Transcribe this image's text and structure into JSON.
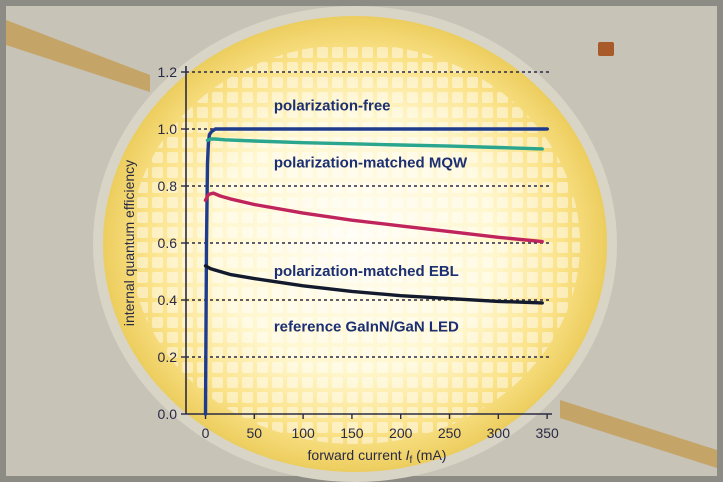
{
  "chart_data": {
    "type": "line",
    "xlabel": "forward current",
    "xlabel_symbol": "I",
    "xlabel_subscript": "f",
    "xlabel_unit": "(mA)",
    "ylabel": "internal quantum efficiency",
    "xlim": [
      -20,
      355
    ],
    "ylim": [
      0.0,
      1.2
    ],
    "x_ticks": [
      0,
      50,
      100,
      150,
      200,
      250,
      300,
      350
    ],
    "x_tick_labels": [
      "0",
      "50",
      "100",
      "150",
      "200",
      "250",
      "300",
      "350"
    ],
    "y_ticks": [
      0.0,
      0.2,
      0.4,
      0.6,
      0.8,
      1.0,
      1.2
    ],
    "y_tick_labels": [
      "0.0",
      "0.2",
      "0.4",
      "0.6",
      "0.8",
      "1.0",
      "1.2"
    ],
    "grid": "horizontal dashed",
    "legend": "none",
    "annotations": [
      {
        "text": "polarization-free",
        "x": 70,
        "y": 1.065,
        "series": 0
      },
      {
        "text": "polarization-matched MQW",
        "x": 70,
        "y": 0.865,
        "series": 1
      },
      {
        "text": "polarization-matched EBL",
        "x": 70,
        "y": 0.485,
        "series": 2
      },
      {
        "text": "reference GaInN/GaN LED",
        "x": 70,
        "y": 0.29,
        "series": 3
      }
    ],
    "series": [
      {
        "color": "#1f3c8c",
        "x": [
          0,
          1,
          2,
          3,
          4,
          6,
          10,
          20,
          50,
          100,
          150,
          200,
          250,
          300,
          350
        ],
        "y": [
          0.0,
          0.6,
          0.88,
          0.95,
          0.98,
          0.99,
          1.0,
          1.0,
          1.0,
          1.0,
          1.0,
          1.0,
          1.0,
          1.0,
          1.0
        ]
      },
      {
        "color": "#2aa58e",
        "x": [
          2,
          5,
          10,
          20,
          50,
          100,
          150,
          200,
          250,
          300,
          345
        ],
        "y": [
          0.96,
          0.965,
          0.965,
          0.962,
          0.958,
          0.952,
          0.948,
          0.944,
          0.94,
          0.935,
          0.93
        ]
      },
      {
        "color": "#c0245c",
        "x": [
          0,
          3,
          8,
          15,
          25,
          50,
          100,
          150,
          200,
          250,
          300,
          345
        ],
        "y": [
          0.75,
          0.77,
          0.775,
          0.765,
          0.755,
          0.735,
          0.705,
          0.68,
          0.66,
          0.64,
          0.62,
          0.605
        ]
      },
      {
        "color": "#141a2e",
        "x": [
          0,
          5,
          10,
          25,
          50,
          100,
          150,
          200,
          250,
          300,
          345
        ],
        "y": [
          0.52,
          0.51,
          0.505,
          0.49,
          0.475,
          0.45,
          0.43,
          0.415,
          0.405,
          0.395,
          0.39
        ]
      }
    ]
  }
}
